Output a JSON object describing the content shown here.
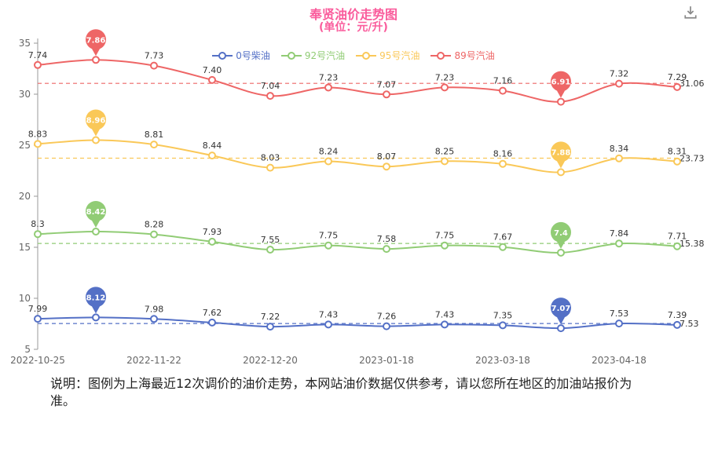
{
  "header": {
    "title": "奉贤油价走势图",
    "subtitle": "(单位：元/升)",
    "title_color": "#fa5c9c"
  },
  "toolbox": {
    "save_icon": "download-icon",
    "icon_color": "#888888"
  },
  "note": "说明：图例为上海最近12次调价的油价走势，本网站油价数据仅供参考，请以您所在地区的加油站报价为准。",
  "chart_data": {
    "type": "line",
    "stacked": true,
    "grid": false,
    "legend_position": "top",
    "x_labels": [
      "2022-10-25",
      "2022-11-22",
      "2022-12-20",
      "2023-01-18",
      "2023-03-18",
      "2023-04-18"
    ],
    "x_label_point_indices": [
      0,
      2,
      4,
      6,
      8,
      10
    ],
    "x_points": 12,
    "ylim": [
      5,
      35
    ],
    "yticks": [
      5,
      10,
      15,
      20,
      25,
      30,
      35
    ],
    "series": [
      {
        "name": "0号柴油",
        "color": "#5470c6",
        "values": [
          "7.99",
          "8.12",
          "7.98",
          "7.62",
          "7.22",
          "7.43",
          "7.26",
          "7.43",
          "7.35",
          "7.07",
          "7.53",
          "7.39"
        ],
        "max_point": {
          "index": 1,
          "label": "8.12"
        },
        "min_point": {
          "index": 9,
          "label": "7.07"
        },
        "markline": {
          "value": 7.53,
          "label": "7.53"
        }
      },
      {
        "name": "92号汽油",
        "color": "#91cc75",
        "values": [
          "8.3",
          "8.42",
          "8.28",
          "7.93",
          "7.55",
          "7.75",
          "7.58",
          "7.75",
          "7.67",
          "7.4",
          "7.84",
          "7.71"
        ],
        "max_point": {
          "index": 1,
          "label": "8.42"
        },
        "min_point": {
          "index": 9,
          "label": "7.4"
        },
        "markline": {
          "value": 15.38,
          "label": "15.38"
        }
      },
      {
        "name": "95号汽油",
        "color": "#fac858",
        "values": [
          "8.83",
          "8.96",
          "8.81",
          "8.44",
          "8.03",
          "8.24",
          "8.07",
          "8.25",
          "8.16",
          "7.88",
          "8.34",
          "8.31"
        ],
        "max_point": {
          "index": 1,
          "label": "8.96"
        },
        "min_point": {
          "index": 9,
          "label": "7.88"
        },
        "markline": {
          "value": 23.73,
          "label": "23.73"
        }
      },
      {
        "name": "89号汽油",
        "color": "#ee6666",
        "values": [
          "7.74",
          "7.86",
          "7.73",
          "7.40",
          "7.04",
          "7.23",
          "7.07",
          "7.23",
          "7.16",
          "6.91",
          "7.32",
          "7.29"
        ],
        "max_point": {
          "index": 1,
          "label": "7.86"
        },
        "min_point": {
          "index": 9,
          "label": "6.91"
        },
        "markline": {
          "value": 31.06,
          "label": "31.06"
        }
      }
    ]
  }
}
